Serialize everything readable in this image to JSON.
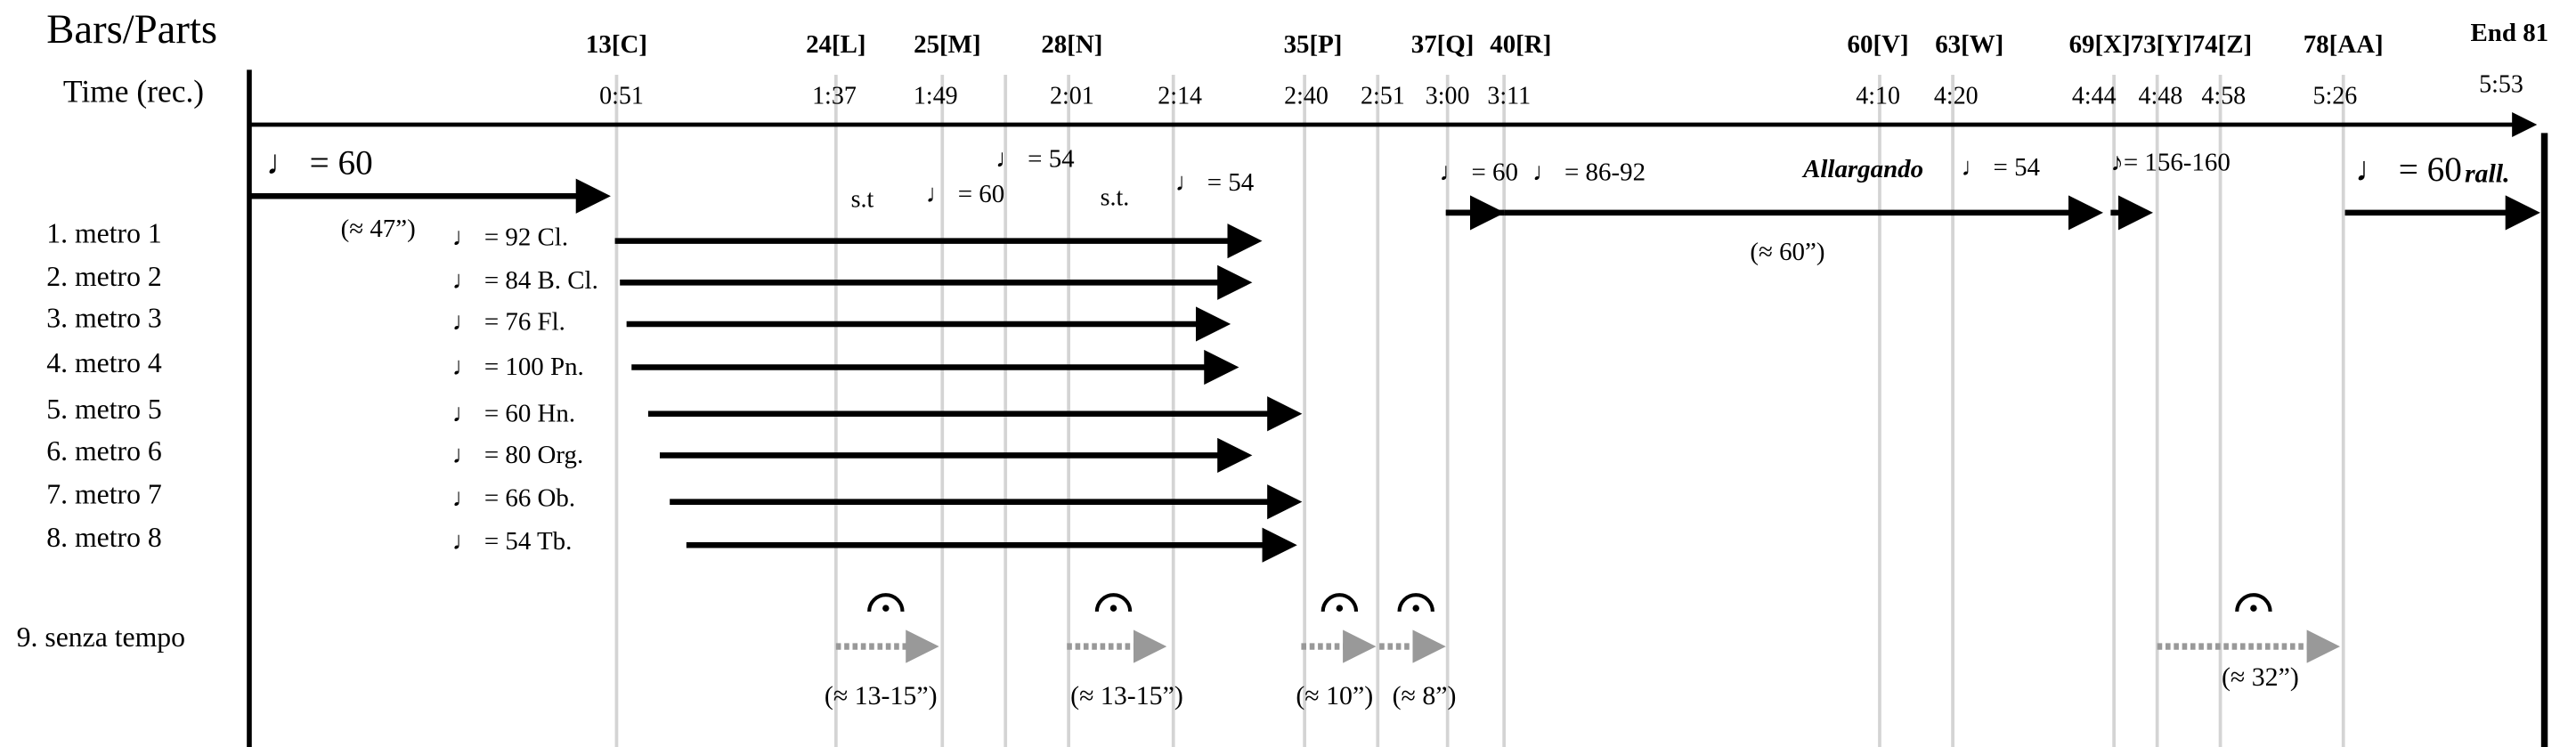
{
  "header": {
    "title": "Bars/Parts",
    "time_label": "Time (rec.)"
  },
  "bars": [
    "13[C]",
    "24[L]",
    "25[M]",
    "28[N]",
    "35[P]",
    "37[Q]",
    "40[R]",
    "60[V]",
    "63[W]",
    "69[X]73[Y]74[Z]",
    "78[AA]",
    "End 81"
  ],
  "times": [
    "0:51",
    "1:37",
    "1:49",
    "2:01",
    "2:14",
    "2:40",
    "2:51",
    "3:00",
    "3:11",
    "4:10",
    "4:20",
    "4:44",
    "4:48",
    "4:58",
    "5:26",
    "5:53"
  ],
  "parts": [
    {
      "label": "1. metro 1",
      "tempo": "♩ = 92 Cl."
    },
    {
      "label": "2. metro 2",
      "tempo": "♩ = 84 B. Cl."
    },
    {
      "label": "3. metro 3",
      "tempo": "♩ = 76 Fl."
    },
    {
      "label": "4. metro 4",
      "tempo": "♩ = 100 Pn."
    },
    {
      "label": "5. metro 5",
      "tempo": "♩ = 60 Hn."
    },
    {
      "label": "6. metro 6",
      "tempo": "♩ = 80 Org."
    },
    {
      "label": "7. metro 7",
      "tempo": "♩ = 66 Ob."
    },
    {
      "label": "8. metro 8",
      "tempo": "♩ = 54 Tb."
    }
  ],
  "senza_tempo": {
    "label": "9. senza tempo",
    "durations": [
      "(≈ 13-15”)",
      "(≈ 13-15”)",
      "(≈ 10”)",
      "(≈ 8”)",
      "(≈ 32”)"
    ]
  },
  "annotations": {
    "intro_tempo": "♩ = 60",
    "intro_duration": "(≈ 47”)",
    "st_1": "s.t",
    "tempo_a": "♩ = 60",
    "tempo_b": "♩ = 54",
    "st_2": "s.t.",
    "tempo_c": "♩ = 54",
    "tempo_d": "♩ = 60",
    "tempo_e": "♩ = 86-92",
    "allargando": "Allargando",
    "tempo_f": "♩ = 54",
    "tempo_g": "♪= 156-160",
    "tempo_h": "♩ = 60",
    "rall": "rall.",
    "middle_duration": "(≈ 60”)"
  }
}
